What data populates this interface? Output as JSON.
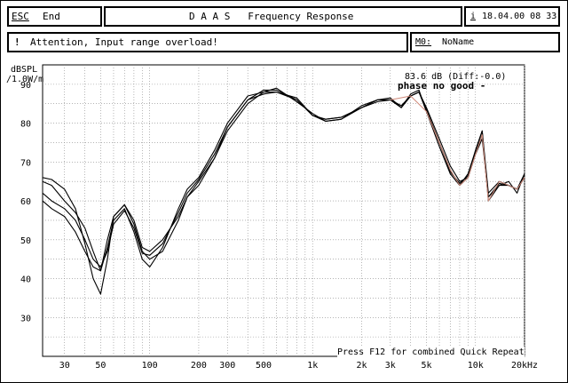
{
  "toolbar": {
    "esc_key": "ESC",
    "esc_label": "End",
    "title": "D A A S   Frequency Response",
    "info_key": "i",
    "datetime": "18.04.00 08 33"
  },
  "status": {
    "bullet": "!",
    "message": "Attention, Input range overload!",
    "memory_key": "M0:",
    "memory_name": "NoName"
  },
  "chart_data": {
    "type": "line",
    "ylabel": "dBSPL",
    "ylabel_sub": "/1.0W/m",
    "x_scale": "log",
    "xlim": [
      22,
      20000
    ],
    "ylim": [
      20,
      95
    ],
    "grid": true,
    "ytick_values": [
      30,
      40,
      50,
      60,
      70,
      80,
      90
    ],
    "ytick_labels": [
      "30",
      "40",
      "50",
      "60",
      "70",
      "80",
      "90"
    ],
    "xtick_values": [
      30,
      50,
      100,
      200,
      300,
      500,
      1000,
      2000,
      3000,
      5000,
      10000,
      20000
    ],
    "xtick_labels": [
      "30",
      "50",
      "100",
      "200",
      "300",
      "500",
      "1k",
      "2k",
      "3k",
      "5k",
      "10k",
      "20kHz"
    ],
    "annotations": {
      "level": "83.6 dB (Diff:-0.0)",
      "phase": "phase no good -",
      "footer_text": "Press F12 for combined Quick Repeat"
    },
    "series": [
      {
        "color": "#000000",
        "x": [
          22,
          25,
          30,
          35,
          40,
          45,
          50,
          55,
          60,
          70,
          80,
          90,
          100,
          120,
          150,
          170,
          200,
          250,
          300,
          400,
          500,
          600,
          800,
          1000,
          1200,
          1500,
          2000,
          2500,
          3000,
          3500,
          4000,
          4500,
          5000,
          6000,
          7000,
          8000,
          9000,
          10000,
          11000,
          12000,
          14000,
          16000,
          18000,
          20000
        ],
        "y": [
          66,
          65.5,
          63,
          58,
          49,
          40,
          36,
          45,
          56,
          59,
          54,
          47,
          45,
          47,
          55,
          61,
          65,
          71,
          79,
          86,
          88.5,
          88.5,
          86,
          82,
          80.5,
          81,
          84,
          86,
          86,
          84,
          87,
          88,
          83,
          75,
          68,
          64,
          67,
          73,
          78,
          62,
          65,
          64,
          63,
          67
        ]
      },
      {
        "color": "#000000",
        "x": [
          22,
          25,
          30,
          35,
          40,
          45,
          50,
          55,
          60,
          70,
          80,
          90,
          100,
          120,
          150,
          170,
          200,
          250,
          300,
          400,
          500,
          600,
          800,
          1000,
          1200,
          1500,
          2000,
          2500,
          3000,
          3500,
          4000,
          4500,
          5000,
          6000,
          7000,
          8000,
          9000,
          10000,
          11000,
          12000,
          14000,
          16000,
          18000,
          20000
        ],
        "y": [
          60,
          58,
          56,
          52,
          47,
          43,
          42,
          48,
          55,
          58,
          52,
          45,
          43,
          48,
          58,
          63,
          66,
          73,
          80,
          87,
          88,
          88,
          86.5,
          82,
          81,
          81.5,
          84,
          86,
          86,
          84.5,
          87,
          88,
          84,
          76,
          69,
          65,
          66,
          72,
          76,
          61,
          64,
          64,
          63,
          66
        ]
      },
      {
        "color": "#000000",
        "x": [
          22,
          25,
          30,
          35,
          40,
          45,
          50,
          55,
          60,
          70,
          80,
          90,
          100,
          120,
          150,
          170,
          200,
          250,
          300,
          400,
          500,
          600,
          800,
          1000,
          1200,
          1500,
          2000,
          2500,
          3000,
          3500,
          4000,
          4500,
          5000,
          6000,
          7000,
          8000,
          9000,
          10000,
          11000,
          12000,
          14000,
          16000,
          18000,
          20000
        ],
        "y": [
          65,
          64,
          60,
          57,
          53,
          47,
          42,
          50,
          56,
          59,
          55,
          48,
          47,
          50,
          56,
          61,
          64,
          71,
          78,
          85,
          88,
          89,
          85.5,
          82.5,
          80.5,
          81,
          84.5,
          86,
          86.5,
          84,
          87.5,
          88.5,
          83,
          74,
          67,
          64,
          66,
          73,
          78,
          60,
          64,
          65,
          62,
          67
        ]
      },
      {
        "color": "#000000",
        "x": [
          22,
          25,
          30,
          35,
          40,
          45,
          50,
          55,
          60,
          70,
          80,
          90,
          100,
          120,
          150,
          170,
          200,
          250,
          300,
          400,
          500,
          600,
          800,
          1000,
          1200,
          1500,
          2000,
          2500,
          3000,
          3500,
          4000,
          4500,
          5000,
          6000,
          7000,
          8000,
          9000,
          10000,
          11000,
          12000,
          14000,
          16000,
          18000,
          20000
        ],
        "y": [
          62,
          60,
          58,
          55,
          50,
          45,
          43,
          47,
          54,
          57.5,
          53,
          46.5,
          46,
          49,
          57,
          62,
          65.5,
          72,
          79,
          86,
          87.5,
          88,
          86,
          82,
          81,
          81.5,
          84,
          85.5,
          86,
          84,
          87,
          88,
          83.5,
          75,
          67.5,
          64.5,
          66.5,
          72.5,
          77,
          61,
          64.5,
          64,
          63,
          66
        ]
      },
      {
        "color": "#d08a7a",
        "x": [
          3000,
          4000,
          5000,
          6000,
          7000,
          8000,
          9000,
          10000,
          11000,
          12000,
          14000,
          16000,
          18000,
          20000
        ],
        "y": [
          86,
          87,
          83,
          75,
          68,
          64,
          66,
          72,
          77,
          60,
          65,
          64,
          63,
          66
        ]
      }
    ]
  }
}
